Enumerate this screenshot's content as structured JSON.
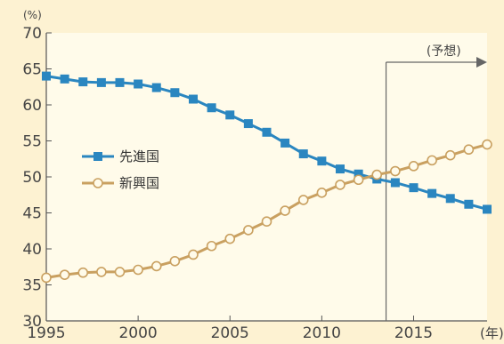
{
  "chart_data": {
    "type": "line",
    "title": "",
    "xlabel": "(年)",
    "ylabel": "(%)",
    "xlim": [
      1995,
      2019
    ],
    "ylim": [
      30,
      70
    ],
    "yticks": [
      30,
      35,
      40,
      45,
      50,
      55,
      60,
      65,
      70
    ],
    "xticks": [
      1995,
      2000,
      2005,
      2010,
      2015
    ],
    "grid": false,
    "legend": "center-left",
    "forecast": {
      "label": "(予想)",
      "start": 2013.5
    },
    "x": [
      1995,
      1996,
      1997,
      1998,
      1999,
      2000,
      2001,
      2002,
      2003,
      2004,
      2005,
      2006,
      2007,
      2008,
      2009,
      2010,
      2011,
      2012,
      2013,
      2014,
      2015,
      2016,
      2017,
      2018,
      2019
    ],
    "series": [
      {
        "name": "先進国",
        "color": "#2a86c0",
        "marker": "square",
        "values": [
          64.0,
          63.6,
          63.2,
          63.1,
          63.1,
          62.9,
          62.4,
          61.7,
          60.8,
          59.6,
          58.6,
          57.4,
          56.2,
          54.7,
          53.2,
          52.2,
          51.1,
          50.4,
          49.7,
          49.2,
          48.5,
          47.7,
          47.0,
          46.2,
          45.5
        ]
      },
      {
        "name": "新興国",
        "color": "#c9a060",
        "marker": "circle",
        "values": [
          36.0,
          36.4,
          36.7,
          36.8,
          36.8,
          37.1,
          37.6,
          38.3,
          39.2,
          40.4,
          41.4,
          42.6,
          43.8,
          45.3,
          46.8,
          47.8,
          48.9,
          49.6,
          50.3,
          50.8,
          51.5,
          52.3,
          53.0,
          53.8,
          54.5
        ]
      }
    ]
  }
}
